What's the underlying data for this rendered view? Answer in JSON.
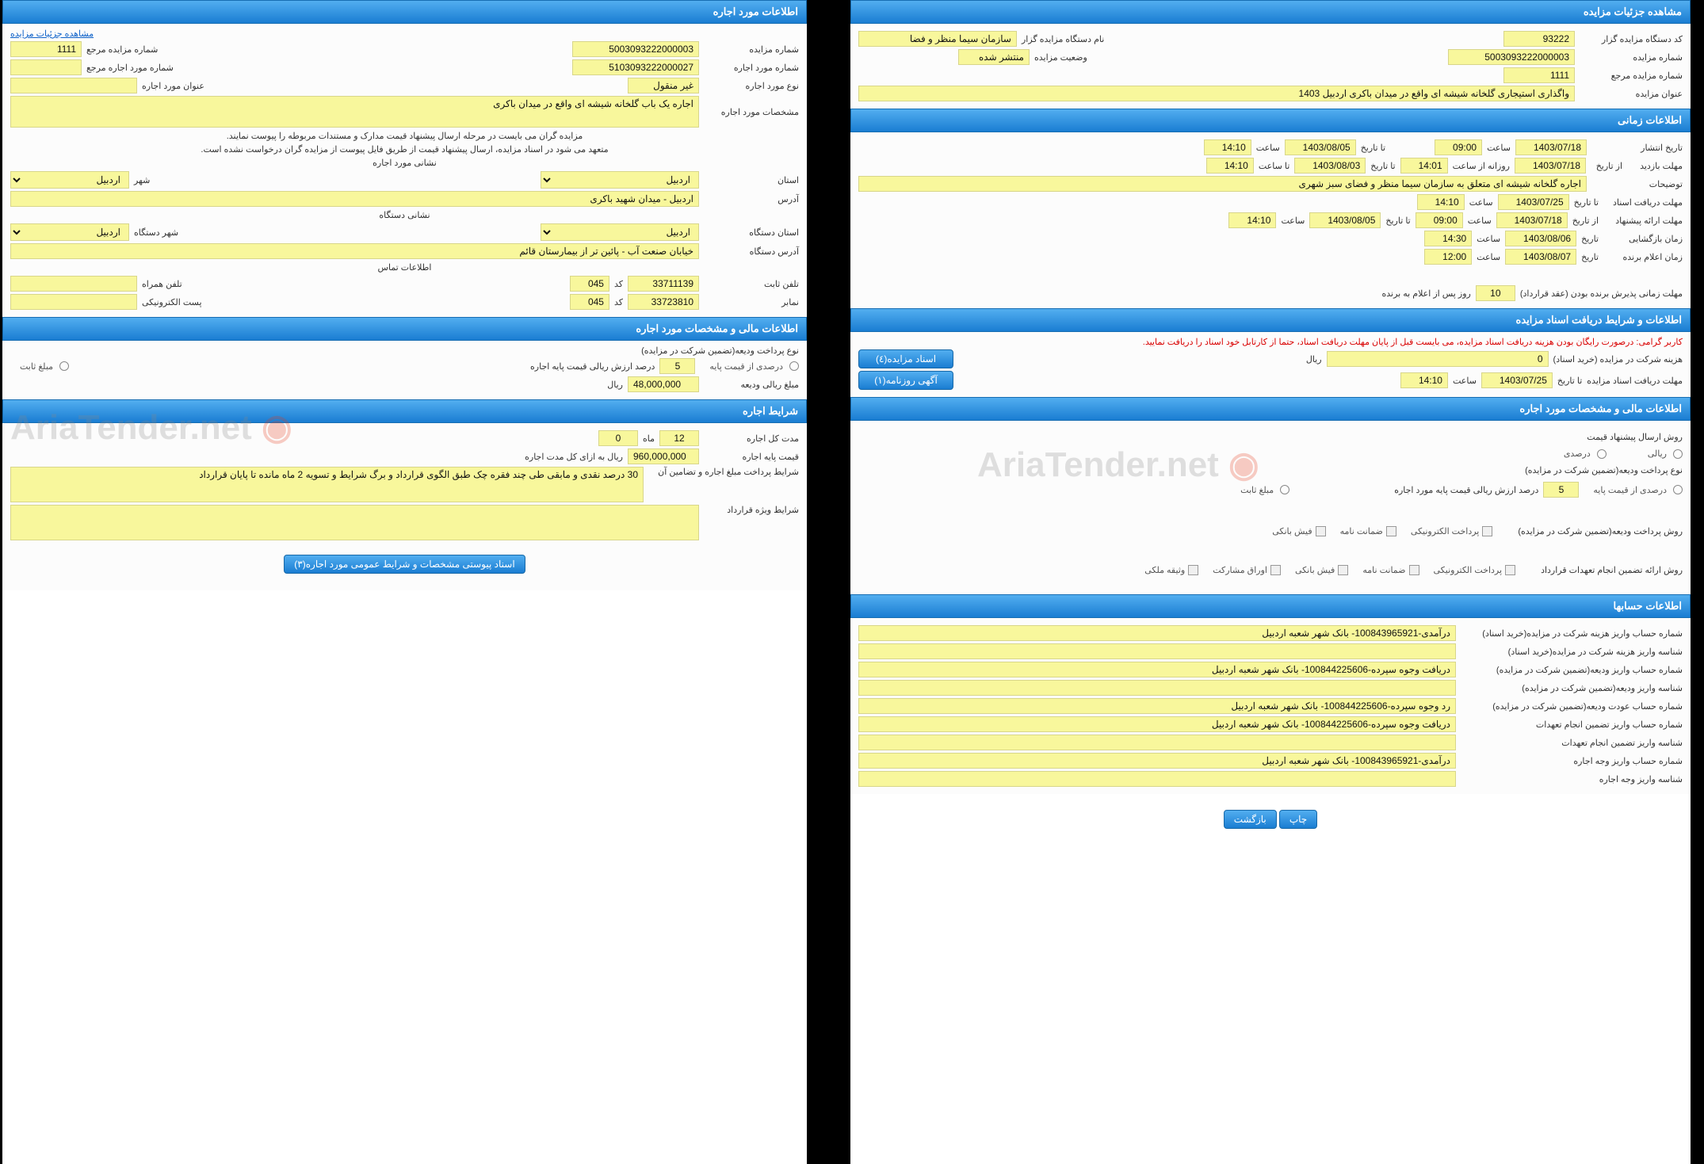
{
  "watermark_text": "AriaTender.net",
  "right": {
    "section1": {
      "header": "مشاهده جزئیات مزایده",
      "code_label": "کد دستگاه مزایده گزار",
      "code": "93222",
      "org_label": "نام دستگاه مزایده گزار",
      "org": "سازمان سیما منظر و فضا",
      "num_label": "شماره مزایده",
      "num": "5003093222000003",
      "status_label": "وضعیت مزایده",
      "status": "منتشر شده",
      "ref_label": "شماره مزایده مرجع",
      "ref": "1111",
      "title_label": "عنوان مزایده",
      "title": "واگذاری استیجاری گلخانه شیشه ای واقع در میدان باکری اردبیل 1403"
    },
    "section2": {
      "header": "اطلاعات زمانی",
      "rows": {
        "publish": {
          "l1": "تاریخ انتشار",
          "v1": "1403/07/18",
          "l2": "ساعت",
          "v2": "09:00",
          "l3": "تا تاریخ",
          "v3": "1403/08/05",
          "l4": "ساعت",
          "v4": "14:10"
        },
        "visit": {
          "l1": "مهلت بازدید",
          "l1b": "از تاریخ",
          "v1": "1403/07/18",
          "l2": "روزانه از ساعت",
          "v2": "14:01",
          "l3": "تا تاریخ",
          "v3": "1403/08/03",
          "l4": "تا ساعت",
          "v4": "14:10"
        },
        "desc": {
          "label": "توضیحات",
          "value": "اجاره گلخانه  شیشه ای متعلق به سازمان سیما منظر و فضای سبز شهری"
        },
        "doc_receive": {
          "l1": "مهلت دریافت اسناد",
          "l1b": "تا تاریخ",
          "v1": "1403/07/25",
          "l2": "ساعت",
          "v2": "14:10"
        },
        "offer": {
          "l1": "مهلت ارائه پیشنهاد",
          "l1b": "از تاریخ",
          "v1": "1403/07/18",
          "l2": "ساعت",
          "v2": "09:00",
          "l3": "تا تاریخ",
          "v3": "1403/08/05",
          "l4": "ساعت",
          "v4": "14:10"
        },
        "open": {
          "l1": "زمان بازگشایی",
          "l1b": "تاریخ",
          "v1": "1403/08/06",
          "l2": "ساعت",
          "v2": "14:30"
        },
        "announce": {
          "l1": "زمان اعلام برنده",
          "l1b": "تاریخ",
          "v1": "1403/08/07",
          "l2": "ساعت",
          "v2": "12:00"
        },
        "duration": {
          "label": "مهلت زمانی پذیرش برنده بودن (عقد قرارداد)",
          "value": "10",
          "suffix": "روز پس از اعلام به برنده"
        }
      }
    },
    "section3": {
      "header": "اطلاعات و شرایط دریافت اسناد مزایده",
      "warn": "کاربر گرامی: درصورت رایگان بودن هزینه دریافت اسناد مزایده، می بایست قبل از پایان مهلت دریافت اسناد، حتما از کارتابل خود اسناد را دریافت نمایید.",
      "cost_label": "هزینه شرکت در مزایده (خرید اسناد)",
      "cost": "0",
      "cost_unit": "ریال",
      "btn_docs": "اسناد مزایده(٤)",
      "deadline_label": "مهلت دریافت اسناد مزایده",
      "deadline_l2": "تا تاریخ",
      "deadline_date": "1403/07/25",
      "deadline_l3": "ساعت",
      "deadline_time": "14:10",
      "btn_news": "آگهی روزنامه(١)"
    },
    "section4": {
      "header": "اطلاعات مالی و مشخصات مورد اجاره",
      "method_label": "روش ارسال پیشنهاد قیمت",
      "radio_percent": "درصدی",
      "radio_rial": "ریالی",
      "type_label": "نوع پرداخت ودیعه(تضمین شرکت در مزایده)",
      "radio_base": "درصدی از قیمت پایه",
      "base_value": "5",
      "base_suffix": "درصد ارزش ریالی قیمت پایه مورد اجاره",
      "radio_fixed": "مبلغ ثابت",
      "pay_method_label": "روش پرداخت ودیعه(تضمین شرکت در مزایده)",
      "chk1": "پرداخت الکترونیکی",
      "chk2": "ضمانت نامه",
      "chk3": "فیش بانکی",
      "guarantee_label": "روش ارائه تضمین انجام تعهدات قرارداد",
      "g1": "پرداخت الکترونیکی",
      "g2": "ضمانت نامه",
      "g3": "فیش بانکی",
      "g4": "اوراق مشارکت",
      "g5": "وثیقه ملکی"
    },
    "section5": {
      "header": "اطلاعات حسابها",
      "rows": [
        {
          "label": "شماره حساب واریز هزینه شرکت در مزایده(خرید اسناد)",
          "value": "درآمدی-100843965921- بانک شهر شعبه اردبیل"
        },
        {
          "label": "شناسه واریز هزینه شرکت در مزایده(خرید اسناد)",
          "value": ""
        },
        {
          "label": "شماره حساب واریز ودیعه(تضمین شرکت در مزایده)",
          "value": "دریافت وجوه سپرده-100844225606- بانک شهر شعبه اردبیل"
        },
        {
          "label": "شناسه واریز ودیعه(تضمین شرکت در مزایده)",
          "value": ""
        },
        {
          "label": "شماره حساب عودت ودیعه(تضمین شرکت در مزایده)",
          "value": "رد وجوه سپرده-100844225606- بانک شهر شعبه اردبیل"
        },
        {
          "label": "شماره حساب واریز تضمین انجام تعهدات",
          "value": "دریافت وجوه سپرده-100844225606- بانک شهر شعبه اردبیل"
        },
        {
          "label": "شناسه واریز تضمین انجام تعهدات",
          "value": ""
        },
        {
          "label": "شماره حساب واریز وجه اجاره",
          "value": "درآمدی-100843965921- بانک شهر شعبه اردبیل"
        },
        {
          "label": "شناسه واریز وجه اجاره",
          "value": ""
        }
      ]
    },
    "buttons": {
      "print": "چاپ",
      "back": "بازگشت"
    }
  },
  "left": {
    "section1": {
      "header": "اطلاعات مورد اجاره",
      "link": "مشاهده جزئیات مزایده",
      "num_label": "شماره مزایده",
      "num": "5003093222000003",
      "ref_label": "شماره مزایده مرجع",
      "ref": "1111",
      "rent_num_label": "شماره مورد اجاره",
      "rent_num": "5103093222000027",
      "rent_ref_label": "شماره مورد اجاره مرجع",
      "rent_ref": "",
      "type_label": "نوع مورد اجاره",
      "type": "غیر منقول",
      "rent_title_label": "عنوان مورد اجاره",
      "rent_title": "",
      "spec_label": "مشخصات مورد اجاره",
      "spec": "اجاره یک باب گلخانه شیشه ای واقع در میدان باکری",
      "note1": "مزایده گران می بایست در مرحله ارسال پیشنهاد قیمت مدارک و مستندات مربوطه را پیوست نمایند.",
      "note2": "متعهد می شود در اسناد مزایده، ارسال پیشنهاد قیمت از طریق فایل پیوست از مزایده گران درخواست نشده است.",
      "address_label": "نشانی مورد اجاره",
      "province_label": "استان",
      "province": "اردبیل",
      "city_label": "شهر",
      "city": "اردبیل",
      "addr_label": "آدرس",
      "addr": "اردبیل - میدان شهید باکری",
      "org_addr_label": "نشانی دستگاه",
      "org_province_label": "استان دستگاه",
      "org_province": "اردبیل",
      "org_city_label": "شهر دستگاه",
      "org_city": "اردبیل",
      "org_addr2_label": "آدرس دستگاه",
      "org_addr2": "خیابان صنعت آب - پائین تر از بیمارستان قائم",
      "contact_label": "اطلاعات تماس",
      "phone_label": "تلفن ثابت",
      "phone": "33711139",
      "phone_code_label": "کد",
      "phone_code": "045",
      "mobile_label": "تلفن همراه",
      "mobile": "",
      "fax_label": "نمابر",
      "fax": "33723810",
      "fax_code_label": "کد",
      "fax_code": "045",
      "email_label": "پست الکترونیکی",
      "email": ""
    },
    "section2": {
      "header": "اطلاعات مالی و مشخصات مورد اجاره",
      "type_label": "نوع پرداخت ودیعه(تضمین شرکت در مزایده)",
      "radio_base": "درصدی از قیمت پایه",
      "base_value": "5",
      "base_suffix": "درصد ارزش ریالی قیمت پایه اجاره",
      "radio_fixed": "مبلغ ثابت",
      "deposit_label": "مبلغ ریالی ودیعه",
      "deposit": "48,000,000",
      "deposit_unit": "ریال"
    },
    "section3": {
      "header": "شرایط اجاره",
      "duration_label": "مدت کل اجاره",
      "duration": "12",
      "duration_unit": "ماه",
      "days": "0",
      "base_label": "قیمت پایه اجاره",
      "base": "960,000,000",
      "base_unit": "ریال به ازای کل مدت اجاره",
      "conditions_label": "شرایط پرداخت مبلغ اجاره و تضامین آن",
      "conditions": "30 درصد نقدی و مابقی طی چند فقره چک طبق الگوی قرارداد و برگ شرایط و تسویه 2 ماه مانده تا پایان قرارداد",
      "special_label": "شرایط ویژه قرارداد",
      "special": "",
      "btn": "اسناد پیوستی مشخصات و شرایط عمومی مورد اجاره(٣)"
    }
  }
}
